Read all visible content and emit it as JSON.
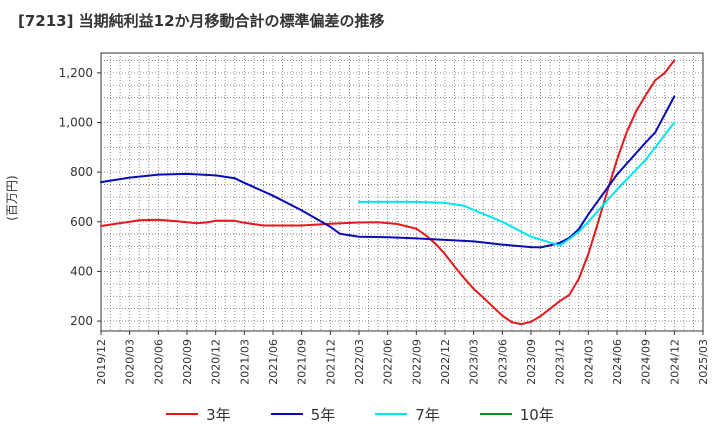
{
  "title": "[7213]  当期純利益12か月移動合計の標準偏差の推移",
  "chart_data": {
    "type": "line",
    "ylabel": "(百万円)",
    "ylim": [
      160,
      1280
    ],
    "yticks": [
      200,
      400,
      600,
      800,
      1000,
      1200
    ],
    "ytick_labels": [
      "200",
      "400",
      "600",
      "800",
      "1,000",
      "1,200"
    ],
    "xticks": [
      "2019/12",
      "2020/03",
      "2020/06",
      "2020/09",
      "2020/12",
      "2021/03",
      "2021/06",
      "2021/09",
      "2021/12",
      "2022/03",
      "2022/06",
      "2022/09",
      "2022/12",
      "2023/03",
      "2023/06",
      "2023/09",
      "2023/12",
      "2024/03",
      "2024/06",
      "2024/09",
      "2024/12",
      "2025/03"
    ],
    "grid": true,
    "legend_position": "bottom",
    "series": [
      {
        "name": "3年",
        "color": "#e31a1c",
        "points": [
          [
            "2019/12",
            583
          ],
          [
            "2020/03",
            600
          ],
          [
            "2020/04",
            606
          ],
          [
            "2020/06",
            608
          ],
          [
            "2020/08",
            602
          ],
          [
            "2020/10",
            594
          ],
          [
            "2020/11",
            597
          ],
          [
            "2020/12",
            604
          ],
          [
            "2021/02",
            604
          ],
          [
            "2021/03",
            596
          ],
          [
            "2021/05",
            585
          ],
          [
            "2021/09",
            585
          ],
          [
            "2021/12",
            592
          ],
          [
            "2022/03",
            597
          ],
          [
            "2022/05",
            598
          ],
          [
            "2022/07",
            591
          ],
          [
            "2022/09",
            572
          ],
          [
            "2022/10",
            545
          ],
          [
            "2022/11",
            512
          ],
          [
            "2022/12",
            470
          ],
          [
            "2023/01",
            420
          ],
          [
            "2023/02",
            373
          ],
          [
            "2023/03",
            330
          ],
          [
            "2023/04",
            295
          ],
          [
            "2023/05",
            258
          ],
          [
            "2023/06",
            222
          ],
          [
            "2023/07",
            195
          ],
          [
            "2023/08",
            188
          ],
          [
            "2023/09",
            197
          ],
          [
            "2023/10",
            220
          ],
          [
            "2023/11",
            250
          ],
          [
            "2023/12",
            280
          ],
          [
            "2024/01",
            305
          ],
          [
            "2024/02",
            370
          ],
          [
            "2024/03",
            470
          ],
          [
            "2024/04",
            595
          ],
          [
            "2024/05",
            725
          ],
          [
            "2024/06",
            850
          ],
          [
            "2024/07",
            960
          ],
          [
            "2024/08",
            1045
          ],
          [
            "2024/09",
            1110
          ],
          [
            "2024/10",
            1170
          ],
          [
            "2024/11",
            1200
          ],
          [
            "2024/12",
            1250
          ]
        ]
      },
      {
        "name": "5年",
        "color": "#0b0bb4",
        "points": [
          [
            "2019/12",
            760
          ],
          [
            "2020/03",
            778
          ],
          [
            "2020/06",
            790
          ],
          [
            "2020/09",
            793
          ],
          [
            "2020/12",
            787
          ],
          [
            "2021/02",
            775
          ],
          [
            "2021/03",
            757
          ],
          [
            "2021/06",
            705
          ],
          [
            "2021/09",
            646
          ],
          [
            "2021/12",
            580
          ],
          [
            "2022/01",
            552
          ],
          [
            "2022/03",
            540
          ],
          [
            "2022/06",
            538
          ],
          [
            "2022/09",
            533
          ],
          [
            "2022/12",
            527
          ],
          [
            "2023/03",
            521
          ],
          [
            "2023/06",
            508
          ],
          [
            "2023/09",
            498
          ],
          [
            "2023/10",
            497
          ],
          [
            "2023/11",
            505
          ],
          [
            "2023/12",
            515
          ],
          [
            "2024/01",
            535
          ],
          [
            "2024/02",
            570
          ],
          [
            "2024/03",
            630
          ],
          [
            "2024/06",
            790
          ],
          [
            "2024/09",
            920
          ],
          [
            "2024/10",
            960
          ],
          [
            "2024/12",
            1105
          ]
        ]
      },
      {
        "name": "7年",
        "color": "#00e5ee",
        "points": [
          [
            "2022/03",
            680
          ],
          [
            "2022/06",
            680
          ],
          [
            "2022/09",
            680
          ],
          [
            "2022/12",
            676
          ],
          [
            "2023/02",
            665
          ],
          [
            "2023/03",
            648
          ],
          [
            "2023/06",
            600
          ],
          [
            "2023/09",
            540
          ],
          [
            "2023/12",
            505
          ],
          [
            "2024/01",
            530
          ],
          [
            "2024/02",
            560
          ],
          [
            "2024/03",
            600
          ],
          [
            "2024/06",
            730
          ],
          [
            "2024/09",
            850
          ],
          [
            "2024/12",
            1000
          ]
        ]
      },
      {
        "name": "10年",
        "color": "#1a8a1a",
        "points": []
      }
    ]
  }
}
